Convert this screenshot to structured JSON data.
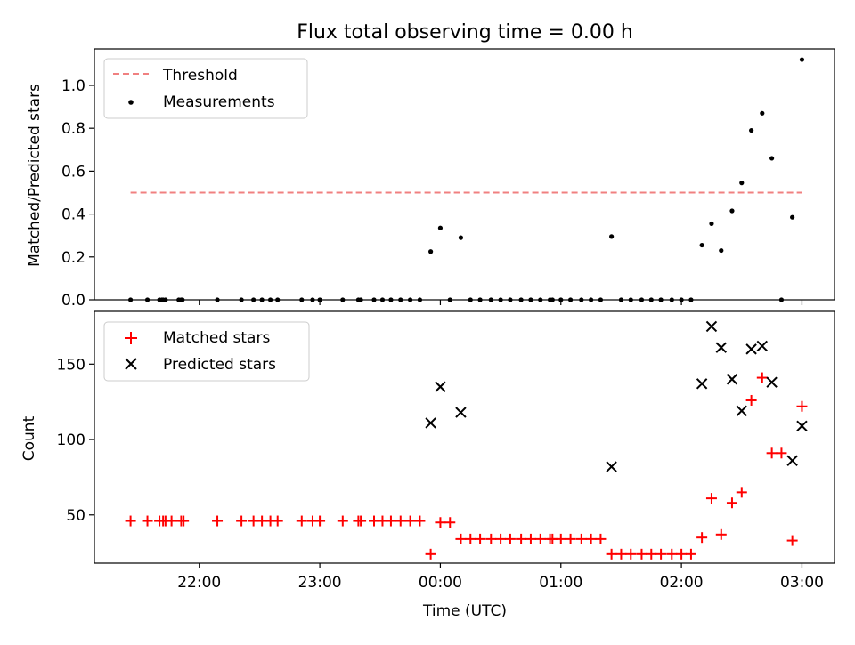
{
  "chart_data": [
    {
      "type": "scatter",
      "title": "Flux total observing time = 0.00 h",
      "xlabel": "",
      "ylabel": "Matched/Predicted stars",
      "ylim": [
        0,
        1.17
      ],
      "yticks": [
        0.0,
        0.2,
        0.4,
        0.6,
        0.8,
        1.0
      ],
      "ytick_labels": [
        "0.0",
        "0.2",
        "0.4",
        "0.6",
        "0.8",
        "1.0"
      ],
      "xticks_hours": [
        22,
        23,
        24,
        25,
        26,
        27
      ],
      "x_unit": "hours UTC (24 = 00:00 next day)",
      "legend_position": "upper-left",
      "threshold": {
        "name": "Threshold",
        "value": 0.5,
        "x_range": [
          21.43,
          27.0
        ],
        "color": "#f08080",
        "style": "dashed"
      },
      "series": [
        {
          "name": "Measurements",
          "color": "#000000",
          "marker": "dot",
          "points": [
            [
              21.43,
              0.0
            ],
            [
              21.57,
              0.0
            ],
            [
              21.67,
              0.0
            ],
            [
              21.69,
              0.0
            ],
            [
              21.7,
              0.0
            ],
            [
              21.72,
              0.0
            ],
            [
              21.83,
              0.0
            ],
            [
              21.85,
              0.0
            ],
            [
              21.86,
              0.0
            ],
            [
              22.15,
              0.0
            ],
            [
              22.35,
              0.0
            ],
            [
              22.45,
              0.0
            ],
            [
              22.52,
              0.0
            ],
            [
              22.59,
              0.0
            ],
            [
              22.65,
              0.0
            ],
            [
              22.85,
              0.0
            ],
            [
              22.94,
              0.0
            ],
            [
              23.0,
              0.0
            ],
            [
              23.19,
              0.0
            ],
            [
              23.32,
              0.0
            ],
            [
              23.34,
              0.0
            ],
            [
              23.45,
              0.0
            ],
            [
              23.52,
              0.0
            ],
            [
              23.59,
              0.0
            ],
            [
              23.67,
              0.0
            ],
            [
              23.75,
              0.0
            ],
            [
              23.83,
              0.0
            ],
            [
              23.92,
              0.225
            ],
            [
              24.0,
              0.335
            ],
            [
              24.08,
              0.0
            ],
            [
              24.17,
              0.29
            ],
            [
              24.25,
              0.0
            ],
            [
              24.33,
              0.0
            ],
            [
              24.42,
              0.0
            ],
            [
              24.5,
              0.0
            ],
            [
              24.58,
              0.0
            ],
            [
              24.67,
              0.0
            ],
            [
              24.75,
              0.0
            ],
            [
              24.83,
              0.0
            ],
            [
              24.91,
              0.0
            ],
            [
              24.93,
              0.0
            ],
            [
              25.0,
              0.0
            ],
            [
              25.08,
              0.0
            ],
            [
              25.17,
              0.0
            ],
            [
              25.25,
              0.0
            ],
            [
              25.33,
              0.0
            ],
            [
              25.42,
              0.295
            ],
            [
              25.5,
              0.0
            ],
            [
              25.58,
              0.0
            ],
            [
              25.67,
              0.0
            ],
            [
              25.75,
              0.0
            ],
            [
              25.83,
              0.0
            ],
            [
              25.92,
              0.0
            ],
            [
              26.0,
              0.0
            ],
            [
              26.08,
              0.0
            ],
            [
              26.17,
              0.255
            ],
            [
              26.25,
              0.355
            ],
            [
              26.33,
              0.23
            ],
            [
              26.42,
              0.415
            ],
            [
              26.5,
              0.545
            ],
            [
              26.58,
              0.79
            ],
            [
              26.67,
              0.87
            ],
            [
              26.75,
              0.66
            ],
            [
              26.83,
              0.0
            ],
            [
              26.92,
              0.385
            ],
            [
              27.0,
              1.12
            ]
          ]
        }
      ]
    },
    {
      "type": "scatter",
      "title": "",
      "xlabel": "Time (UTC)",
      "ylabel": "Count",
      "ylim": [
        18,
        185
      ],
      "yticks": [
        50,
        100,
        150
      ],
      "ytick_labels": [
        "50",
        "100",
        "150"
      ],
      "xticks_hours": [
        22,
        23,
        24,
        25,
        26,
        27
      ],
      "xtick_labels": [
        "22:00",
        "23:00",
        "00:00",
        "01:00",
        "02:00",
        "03:00"
      ],
      "legend_position": "upper-left",
      "series": [
        {
          "name": "Matched stars",
          "color": "#ff0000",
          "marker": "plus",
          "points": [
            [
              21.43,
              46
            ],
            [
              21.57,
              46
            ],
            [
              21.67,
              46
            ],
            [
              21.7,
              46
            ],
            [
              21.72,
              46
            ],
            [
              21.77,
              46
            ],
            [
              21.85,
              46
            ],
            [
              21.87,
              46
            ],
            [
              22.15,
              46
            ],
            [
              22.35,
              46
            ],
            [
              22.45,
              46
            ],
            [
              22.52,
              46
            ],
            [
              22.59,
              46
            ],
            [
              22.65,
              46
            ],
            [
              22.85,
              46
            ],
            [
              22.94,
              46
            ],
            [
              23.0,
              46
            ],
            [
              23.19,
              46
            ],
            [
              23.32,
              46
            ],
            [
              23.34,
              46
            ],
            [
              23.45,
              46
            ],
            [
              23.52,
              46
            ],
            [
              23.59,
              46
            ],
            [
              23.67,
              46
            ],
            [
              23.75,
              46
            ],
            [
              23.83,
              46
            ],
            [
              23.92,
              24
            ],
            [
              24.0,
              45
            ],
            [
              24.08,
              45
            ],
            [
              24.17,
              34
            ],
            [
              24.25,
              34
            ],
            [
              24.33,
              34
            ],
            [
              24.42,
              34
            ],
            [
              24.5,
              34
            ],
            [
              24.58,
              34
            ],
            [
              24.67,
              34
            ],
            [
              24.75,
              34
            ],
            [
              24.83,
              34
            ],
            [
              24.91,
              34
            ],
            [
              24.93,
              34
            ],
            [
              25.0,
              34
            ],
            [
              25.08,
              34
            ],
            [
              25.17,
              34
            ],
            [
              25.25,
              34
            ],
            [
              25.33,
              34
            ],
            [
              25.42,
              24
            ],
            [
              25.5,
              24
            ],
            [
              25.58,
              24
            ],
            [
              25.67,
              24
            ],
            [
              25.75,
              24
            ],
            [
              25.83,
              24
            ],
            [
              25.92,
              24
            ],
            [
              26.0,
              24
            ],
            [
              26.08,
              24
            ],
            [
              26.17,
              35
            ],
            [
              26.25,
              61
            ],
            [
              26.33,
              37
            ],
            [
              26.42,
              58
            ],
            [
              26.5,
              65
            ],
            [
              26.58,
              126
            ],
            [
              26.67,
              141
            ],
            [
              26.75,
              91
            ],
            [
              26.83,
              91
            ],
            [
              26.92,
              33
            ],
            [
              27.0,
              122
            ]
          ]
        },
        {
          "name": "Predicted stars",
          "color": "#000000",
          "marker": "x",
          "points": [
            [
              23.92,
              111
            ],
            [
              24.0,
              135
            ],
            [
              24.17,
              118
            ],
            [
              25.42,
              82
            ],
            [
              26.17,
              137
            ],
            [
              26.25,
              175
            ],
            [
              26.33,
              161
            ],
            [
              26.42,
              140
            ],
            [
              26.5,
              119
            ],
            [
              26.58,
              160
            ],
            [
              26.67,
              162
            ],
            [
              26.75,
              138
            ],
            [
              26.92,
              86
            ],
            [
              27.0,
              109
            ]
          ]
        }
      ]
    }
  ]
}
